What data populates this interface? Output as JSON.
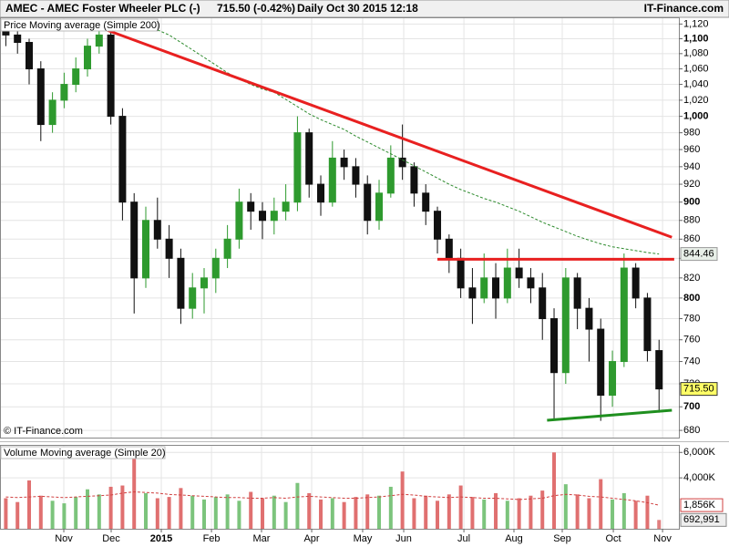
{
  "header": {
    "title": "AMEC - AMEC Foster Wheeler PLC (-)",
    "quote": "715.50 (-0.42%)",
    "period": "Daily",
    "timestamp": "Oct 30 2015 12:18",
    "brand": "IT-Finance.com"
  },
  "chart_data": [
    {
      "type": "candlestick",
      "legend_label": "Price",
      "copyright": "© IT-Finance.com",
      "log": true,
      "grid": true,
      "up_color": "#2e9a2e",
      "down_color": "#111111",
      "xlim": [
        -0.5,
        57.7
      ],
      "ylim": [
        674,
        1128
      ],
      "yticks": [
        {
          "value": 1120,
          "label": "1,120"
        },
        {
          "value": 1100,
          "label": "1,100"
        },
        {
          "value": 1080,
          "label": "1,080"
        },
        {
          "value": 1060,
          "label": "1,060"
        },
        {
          "value": 1040,
          "label": "1,040"
        },
        {
          "value": 1020,
          "label": "1,020"
        },
        {
          "value": 1000,
          "label": "1,000"
        },
        980,
        960,
        940,
        920,
        900,
        880,
        860,
        840,
        820,
        800,
        780,
        760,
        740,
        720,
        700,
        680
      ],
      "open": [
        1110,
        1105,
        1095,
        1060,
        990,
        1020,
        1040,
        1060,
        1090,
        1105,
        1000,
        900,
        820,
        880,
        860,
        840,
        790,
        810,
        820,
        840,
        860,
        900,
        890,
        880,
        890,
        900,
        980,
        920,
        900,
        950,
        940,
        920,
        880,
        910,
        950,
        940,
        910,
        890,
        860,
        840,
        810,
        800,
        820,
        800,
        830,
        820,
        810,
        780,
        730,
        820,
        790,
        770,
        710,
        740,
        830,
        800,
        750
      ],
      "high": [
        1120,
        1115,
        1100,
        1070,
        1030,
        1055,
        1075,
        1100,
        1120,
        1110,
        1010,
        910,
        895,
        905,
        875,
        850,
        825,
        830,
        850,
        875,
        915,
        910,
        900,
        905,
        920,
        1000,
        985,
        930,
        970,
        960,
        950,
        930,
        925,
        965,
        990,
        945,
        920,
        895,
        865,
        850,
        830,
        845,
        835,
        850,
        850,
        830,
        825,
        790,
        830,
        825,
        800,
        780,
        750,
        845,
        835,
        805,
        760
      ],
      "low": [
        1090,
        1080,
        1040,
        970,
        980,
        1010,
        1030,
        1050,
        1080,
        990,
        880,
        785,
        810,
        850,
        820,
        775,
        780,
        785,
        805,
        830,
        850,
        870,
        860,
        865,
        880,
        890,
        905,
        885,
        895,
        925,
        905,
        865,
        870,
        905,
        925,
        895,
        875,
        845,
        825,
        800,
        775,
        795,
        780,
        795,
        810,
        795,
        760,
        690,
        720,
        770,
        740,
        688,
        700,
        735,
        790,
        740,
        695
      ],
      "close": [
        1105,
        1095,
        1060,
        990,
        1020,
        1040,
        1060,
        1090,
        1105,
        1000,
        900,
        820,
        880,
        860,
        840,
        790,
        810,
        820,
        840,
        860,
        900,
        890,
        880,
        890,
        900,
        980,
        920,
        900,
        950,
        940,
        920,
        880,
        910,
        950,
        940,
        910,
        890,
        860,
        840,
        810,
        800,
        820,
        800,
        830,
        820,
        810,
        780,
        730,
        820,
        790,
        770,
        710,
        740,
        830,
        800,
        750,
        715.5
      ],
      "last_value_label": "715.50",
      "series": [
        {
          "name": "Moving average (Simple 200)",
          "color": "#2e8b2e",
          "last_value_label": "844.46",
          "values": [
            null,
            null,
            null,
            null,
            null,
            null,
            null,
            null,
            null,
            null,
            null,
            null,
            null,
            1112,
            1105,
            1095,
            1085,
            1075,
            1065,
            1055,
            1047,
            1040,
            1034,
            1030,
            1021,
            1012,
            1003,
            996,
            990,
            984,
            976,
            969,
            962,
            955,
            948,
            941,
            934,
            927,
            920,
            914,
            909,
            904,
            900,
            895,
            890,
            884,
            878,
            873,
            868,
            863,
            859,
            855,
            852,
            850,
            848,
            846,
            844.46
          ]
        }
      ],
      "trendlines": [
        {
          "color": "#e82020",
          "x": [
            8.1,
            57.1
          ],
          "values": [
            1115,
            862
          ]
        },
        {
          "color": "#e82020",
          "x": [
            37,
            57.3
          ],
          "values": [
            839,
            839
          ]
        },
        {
          "color": "#1f8f1f",
          "x": [
            46.4,
            57.1
          ],
          "values": [
            688.5,
            697
          ]
        }
      ]
    },
    {
      "type": "bar",
      "legend_label": "Volume",
      "grid": true,
      "xlim": [
        -0.5,
        57.7
      ],
      "ylim": [
        0,
        6520
      ],
      "yticks": [
        {
          "value": 4000,
          "label": "4,000K"
        },
        {
          "value": 6000,
          "label": "6,000K"
        }
      ],
      "xticks": [
        {
          "value": 4.97,
          "label": "Nov"
        },
        {
          "value": 9.03,
          "label": "Dec"
        },
        {
          "value": 13.33,
          "label": "2015"
        },
        {
          "value": 17.63,
          "label": "Feb"
        },
        {
          "value": 21.92,
          "label": "Mar"
        },
        {
          "value": 26.22,
          "label": "Apr"
        },
        {
          "value": 30.59,
          "label": "May"
        },
        {
          "value": 34.11,
          "label": "Jun"
        },
        {
          "value": 39.27,
          "label": "Jul"
        },
        {
          "value": 43.56,
          "label": "Aug"
        },
        {
          "value": 47.7,
          "label": "Sep"
        },
        {
          "value": 52.08,
          "label": "Oct"
        },
        {
          "value": 56.3,
          "label": "Nov"
        }
      ],
      "series": [
        {
          "name": "Volume",
          "last_value_label": "692,991",
          "values": [
            2400,
            2100,
            3800,
            2600,
            2200,
            2000,
            2500,
            3100,
            2700,
            3300,
            3400,
            5500,
            2800,
            2400,
            2500,
            3200,
            2600,
            2300,
            2500,
            2700,
            2200,
            2900,
            2400,
            2600,
            2100,
            3600,
            2800,
            2300,
            2400,
            2100,
            2500,
            2700,
            2600,
            3300,
            4500,
            2400,
            2600,
            2200,
            2700,
            3400,
            2500,
            2300,
            2800,
            2200,
            2400,
            2600,
            3000,
            6000,
            3500,
            2700,
            2400,
            3900,
            2300,
            2800,
            2200,
            2600,
            692.991
          ]
        },
        {
          "name": "Moving average (Simple 20)",
          "color": "#d04040",
          "last_value_label": "1,856K",
          "values": [
            2500,
            2450,
            2500,
            2550,
            2500,
            2450,
            2500,
            2550,
            2600,
            2650,
            2800,
            2900,
            2850,
            2800,
            2700,
            2650,
            2600,
            2550,
            2500,
            2450,
            2450,
            2400,
            2400,
            2450,
            2400,
            2500,
            2550,
            2500,
            2450,
            2400,
            2400,
            2450,
            2500,
            2600,
            2700,
            2650,
            2550,
            2500,
            2450,
            2500,
            2450,
            2400,
            2400,
            2350,
            2300,
            2350,
            2400,
            2600,
            2700,
            2650,
            2550,
            2500,
            2400,
            2300,
            2200,
            2050,
            1856
          ]
        }
      ]
    }
  ]
}
